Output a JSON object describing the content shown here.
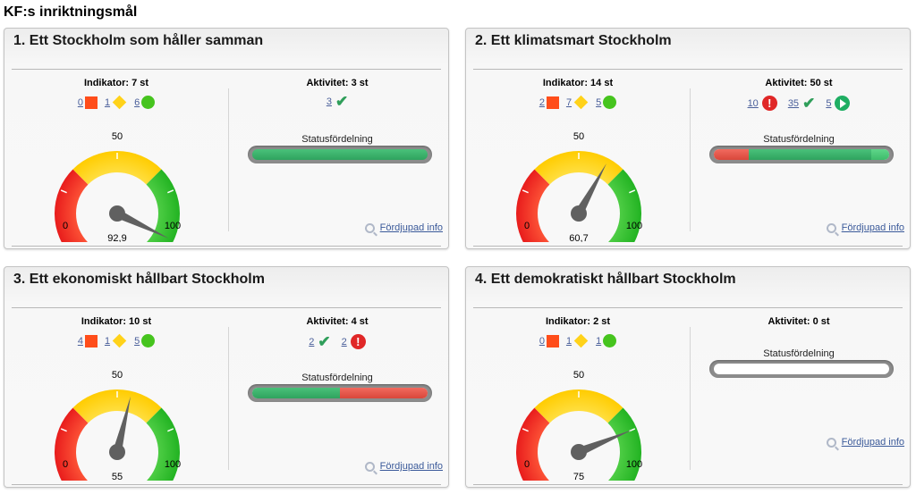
{
  "page_title": "KF:s inriktningsmål",
  "labels": {
    "status": "Statusfördelning",
    "more_info": "Fördjupad info",
    "gauge_min": "0",
    "gauge_mid": "50",
    "gauge_max": "100"
  },
  "colors": {
    "red": "#ff4d1a",
    "yellow": "#ffd21a",
    "green": "#46c41e"
  },
  "panels": [
    {
      "title": "1. Ett Stockholm som håller samman",
      "indicator_header": "Indikator: 7 st",
      "indicator_counts": {
        "red": "0",
        "yellow": "1",
        "green": "6"
      },
      "activity_header": "Aktivitet: 3 st",
      "activities": [
        {
          "count": "3",
          "icon": "check-icon"
        }
      ],
      "gauge_value": 92.9,
      "gauge_label": "92,9",
      "status_bar": [
        {
          "color": "green",
          "fraction": 1.0
        }
      ]
    },
    {
      "title": "2. Ett klimatsmart Stockholm",
      "indicator_header": "Indikator: 14 st",
      "indicator_counts": {
        "red": "2",
        "yellow": "7",
        "green": "5"
      },
      "activity_header": "Aktivitet: 50 st",
      "activities": [
        {
          "count": "10",
          "icon": "exclamation-icon"
        },
        {
          "count": "35",
          "icon": "check-icon"
        },
        {
          "count": "5",
          "icon": "play-icon"
        }
      ],
      "gauge_value": 60.7,
      "gauge_label": "60,7",
      "status_bar": [
        {
          "color": "red",
          "fraction": 0.2
        },
        {
          "color": "green",
          "fraction": 0.7
        },
        {
          "color": "end",
          "fraction": 0.1
        }
      ]
    },
    {
      "title": "3. Ett ekonomiskt hållbart Stockholm",
      "indicator_header": "Indikator: 10 st",
      "indicator_counts": {
        "red": "4",
        "yellow": "1",
        "green": "5"
      },
      "activity_header": "Aktivitet: 4 st",
      "activities": [
        {
          "count": "2",
          "icon": "check-icon"
        },
        {
          "count": "2",
          "icon": "exclamation-icon"
        }
      ],
      "gauge_value": 55,
      "gauge_label": "55",
      "status_bar": [
        {
          "color": "green",
          "fraction": 0.5
        },
        {
          "color": "red",
          "fraction": 0.5
        }
      ]
    },
    {
      "title": "4. Ett demokratiskt hållbart Stockholm",
      "indicator_header": "Indikator: 2 st",
      "indicator_counts": {
        "red": "0",
        "yellow": "1",
        "green": "1"
      },
      "activity_header": "Aktivitet: 0 st",
      "activities": [],
      "gauge_value": 75,
      "gauge_label": "75",
      "status_bar": []
    }
  ]
}
